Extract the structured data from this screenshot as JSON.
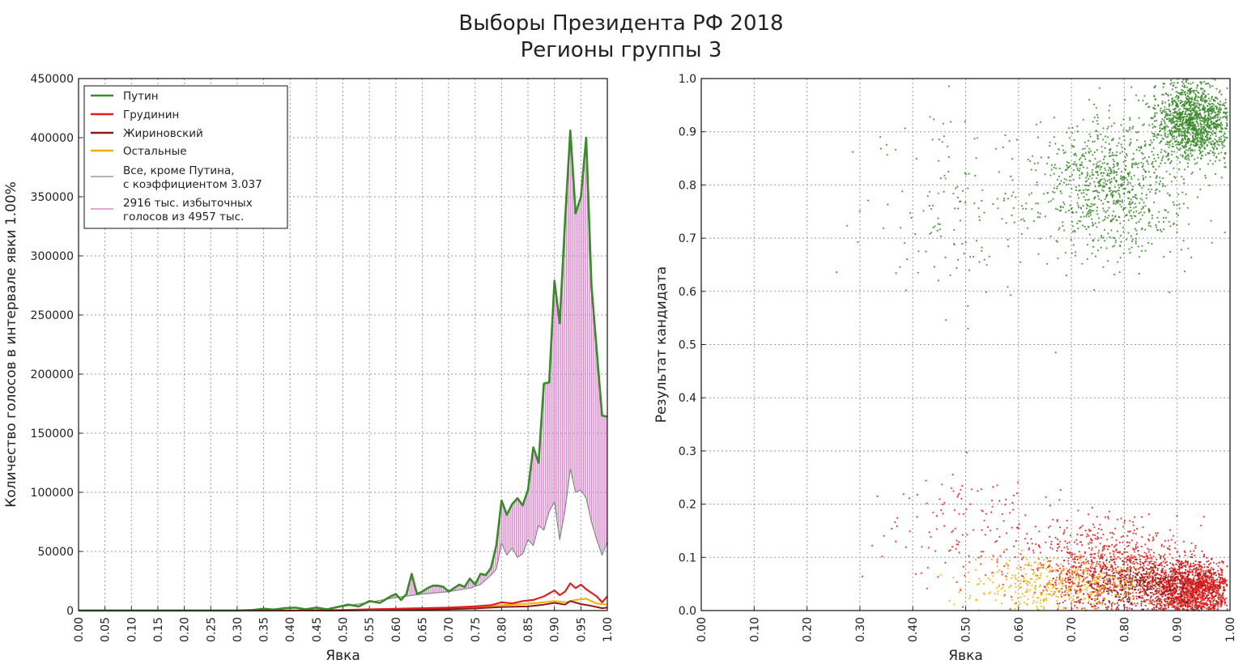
{
  "title": {
    "line1": "Выборы Президента РФ 2018",
    "line2": "Регионы группы 3"
  },
  "colors": {
    "putin": "#3a8a2a",
    "grudinin": "#e02020",
    "zhirinovsky": "#8b1a1a",
    "others": "#f0b000",
    "rest_scaled": "#888888",
    "excess": "#d070c0"
  },
  "chart_data": [
    {
      "type": "line",
      "xlabel": "Явка",
      "ylabel": "Количество голосов в интервале явки 1.00%",
      "xlim": [
        0,
        1
      ],
      "ylim": [
        0,
        450000
      ],
      "grid": true,
      "legend_position": "top-left",
      "x_ticks": [
        "0.00",
        "0.05",
        "0.10",
        "0.15",
        "0.20",
        "0.25",
        "0.30",
        "0.35",
        "0.40",
        "0.45",
        "0.50",
        "0.55",
        "0.60",
        "0.65",
        "0.70",
        "0.75",
        "0.80",
        "0.85",
        "0.90",
        "0.95",
        "1.00"
      ],
      "y_ticks": [
        "0",
        "50000",
        "100000",
        "150000",
        "200000",
        "250000",
        "300000",
        "350000",
        "400000",
        "450000"
      ],
      "legend": [
        {
          "label": "Путин",
          "series": "putin"
        },
        {
          "label": "Грудинин",
          "series": "grudinin"
        },
        {
          "label": "Жириновский",
          "series": "zhirinovsky"
        },
        {
          "label": "Остальные",
          "series": "others"
        },
        {
          "label": "Все, кроме Путина,\nс коэффициентом 3.037",
          "series": "rest_scaled"
        },
        {
          "label": "2916 тыс. избыточных\nголосов из 4957 тыс.",
          "series": "excess"
        }
      ],
      "series": [
        {
          "name": "Путин",
          "key": "putin",
          "points": [
            [
              0.0,
              0
            ],
            [
              0.3,
              0
            ],
            [
              0.33,
              500
            ],
            [
              0.35,
              1500
            ],
            [
              0.37,
              800
            ],
            [
              0.39,
              2000
            ],
            [
              0.41,
              2500
            ],
            [
              0.43,
              1000
            ],
            [
              0.45,
              2500
            ],
            [
              0.47,
              1000
            ],
            [
              0.49,
              3000
            ],
            [
              0.51,
              5000
            ],
            [
              0.53,
              3500
            ],
            [
              0.55,
              8000
            ],
            [
              0.57,
              6500
            ],
            [
              0.59,
              12000
            ],
            [
              0.6,
              14000
            ],
            [
              0.61,
              9000
            ],
            [
              0.62,
              14000
            ],
            [
              0.63,
              31000
            ],
            [
              0.64,
              14000
            ],
            [
              0.65,
              16000
            ],
            [
              0.66,
              19000
            ],
            [
              0.67,
              21000
            ],
            [
              0.68,
              21000
            ],
            [
              0.69,
              20000
            ],
            [
              0.7,
              16000
            ],
            [
              0.71,
              19000
            ],
            [
              0.72,
              22000
            ],
            [
              0.73,
              20000
            ],
            [
              0.74,
              27000
            ],
            [
              0.75,
              22000
            ],
            [
              0.76,
              31000
            ],
            [
              0.77,
              30000
            ],
            [
              0.78,
              36000
            ],
            [
              0.79,
              55000
            ],
            [
              0.8,
              93000
            ],
            [
              0.81,
              81000
            ],
            [
              0.82,
              90000
            ],
            [
              0.83,
              95000
            ],
            [
              0.84,
              89000
            ],
            [
              0.85,
              102000
            ],
            [
              0.86,
              138000
            ],
            [
              0.87,
              125000
            ],
            [
              0.88,
              192000
            ],
            [
              0.89,
              193000
            ],
            [
              0.9,
              279000
            ],
            [
              0.91,
              243000
            ],
            [
              0.92,
              330000
            ],
            [
              0.93,
              406000
            ],
            [
              0.94,
              336000
            ],
            [
              0.95,
              350000
            ],
            [
              0.96,
              400000
            ],
            [
              0.97,
              275000
            ],
            [
              0.98,
              220000
            ],
            [
              0.99,
              165000
            ],
            [
              1.0,
              164000
            ]
          ]
        },
        {
          "name": "Грудинин",
          "key": "grudinin",
          "points": [
            [
              0.0,
              0
            ],
            [
              0.4,
              0
            ],
            [
              0.5,
              500
            ],
            [
              0.55,
              1000
            ],
            [
              0.6,
              1500
            ],
            [
              0.65,
              2000
            ],
            [
              0.7,
              2500
            ],
            [
              0.75,
              3500
            ],
            [
              0.78,
              4500
            ],
            [
              0.8,
              7000
            ],
            [
              0.82,
              6000
            ],
            [
              0.84,
              8000
            ],
            [
              0.86,
              9000
            ],
            [
              0.88,
              12000
            ],
            [
              0.9,
              17000
            ],
            [
              0.91,
              13000
            ],
            [
              0.92,
              16000
            ],
            [
              0.93,
              23000
            ],
            [
              0.94,
              19000
            ],
            [
              0.95,
              22000
            ],
            [
              0.96,
              18000
            ],
            [
              0.97,
              15000
            ],
            [
              0.98,
              12000
            ],
            [
              0.99,
              7000
            ],
            [
              1.0,
              12000
            ]
          ]
        },
        {
          "name": "Жириновский",
          "key": "zhirinovsky",
          "points": [
            [
              0.0,
              0
            ],
            [
              0.5,
              0
            ],
            [
              0.6,
              700
            ],
            [
              0.7,
              1200
            ],
            [
              0.75,
              1800
            ],
            [
              0.8,
              3000
            ],
            [
              0.85,
              3500
            ],
            [
              0.88,
              5000
            ],
            [
              0.9,
              6500
            ],
            [
              0.92,
              5000
            ],
            [
              0.93,
              8000
            ],
            [
              0.95,
              5500
            ],
            [
              0.97,
              4000
            ],
            [
              0.99,
              2000
            ],
            [
              1.0,
              2500
            ]
          ]
        },
        {
          "name": "Остальные",
          "key": "others",
          "points": [
            [
              0.0,
              0
            ],
            [
              0.45,
              0
            ],
            [
              0.55,
              700
            ],
            [
              0.65,
              1200
            ],
            [
              0.72,
              2000
            ],
            [
              0.76,
              3000
            ],
            [
              0.8,
              4500
            ],
            [
              0.84,
              5500
            ],
            [
              0.87,
              6500
            ],
            [
              0.9,
              8000
            ],
            [
              0.92,
              7000
            ],
            [
              0.94,
              9000
            ],
            [
              0.96,
              10000
            ],
            [
              0.98,
              6000
            ],
            [
              1.0,
              5000
            ]
          ]
        },
        {
          "name": "Все, кроме Путина, с коэффициентом 3.037",
          "key": "rest_scaled",
          "points": [
            [
              0.0,
              0
            ],
            [
              0.45,
              0
            ],
            [
              0.55,
              7000
            ],
            [
              0.6,
              11000
            ],
            [
              0.65,
              14000
            ],
            [
              0.7,
              16000
            ],
            [
              0.74,
              19000
            ],
            [
              0.76,
              22000
            ],
            [
              0.78,
              30000
            ],
            [
              0.79,
              35000
            ],
            [
              0.8,
              57000
            ],
            [
              0.81,
              47000
            ],
            [
              0.82,
              53000
            ],
            [
              0.83,
              45000
            ],
            [
              0.84,
              48000
            ],
            [
              0.85,
              60000
            ],
            [
              0.86,
              55000
            ],
            [
              0.87,
              72000
            ],
            [
              0.88,
              68000
            ],
            [
              0.89,
              84000
            ],
            [
              0.9,
              92000
            ],
            [
              0.91,
              60000
            ],
            [
              0.92,
              85000
            ],
            [
              0.93,
              120000
            ],
            [
              0.94,
              100000
            ],
            [
              0.95,
              102000
            ],
            [
              0.96,
              95000
            ],
            [
              0.97,
              75000
            ],
            [
              0.98,
              60000
            ],
            [
              0.99,
              47000
            ],
            [
              1.0,
              58000
            ]
          ]
        }
      ]
    },
    {
      "type": "scatter",
      "xlabel": "Явка",
      "ylabel": "Результат кандидата",
      "xlim": [
        0,
        1
      ],
      "ylim": [
        0,
        1
      ],
      "grid": true,
      "x_ticks": [
        "0.00",
        "0.10",
        "0.20",
        "0.30",
        "0.40",
        "0.50",
        "0.60",
        "0.70",
        "0.80",
        "0.90",
        "1.00"
      ],
      "y_ticks": [
        "0.0",
        "0.1",
        "0.2",
        "0.3",
        "0.4",
        "0.5",
        "0.6",
        "0.7",
        "0.8",
        "0.9",
        "1.0"
      ],
      "clusters": [
        {
          "candidate": "Путин",
          "color_key": "putin",
          "center": [
            0.93,
            0.92
          ],
          "spread": [
            0.05,
            0.05
          ],
          "count": 1300
        },
        {
          "candidate": "Путин",
          "color_key": "putin",
          "center": [
            0.78,
            0.8
          ],
          "spread": [
            0.1,
            0.09
          ],
          "count": 900
        },
        {
          "candidate": "Путин",
          "color_key": "putin",
          "center": [
            0.52,
            0.75
          ],
          "spread": [
            0.14,
            0.12
          ],
          "count": 160
        },
        {
          "candidate": "Грудинин",
          "color_key": "grudinin",
          "center": [
            0.93,
            0.04
          ],
          "spread": [
            0.05,
            0.035
          ],
          "count": 1600
        },
        {
          "candidate": "Грудинин",
          "color_key": "grudinin",
          "center": [
            0.78,
            0.08
          ],
          "spread": [
            0.11,
            0.06
          ],
          "count": 900
        },
        {
          "candidate": "Грудинин",
          "color_key": "grudinin",
          "center": [
            0.55,
            0.14
          ],
          "spread": [
            0.13,
            0.08
          ],
          "count": 160
        },
        {
          "candidate": "Жириновский",
          "color_key": "zhirinovsky",
          "center": [
            0.85,
            0.05
          ],
          "spread": [
            0.1,
            0.035
          ],
          "count": 600
        },
        {
          "candidate": "Остальные",
          "color_key": "others",
          "center": [
            0.68,
            0.05
          ],
          "spread": [
            0.12,
            0.035
          ],
          "count": 400
        }
      ]
    }
  ]
}
